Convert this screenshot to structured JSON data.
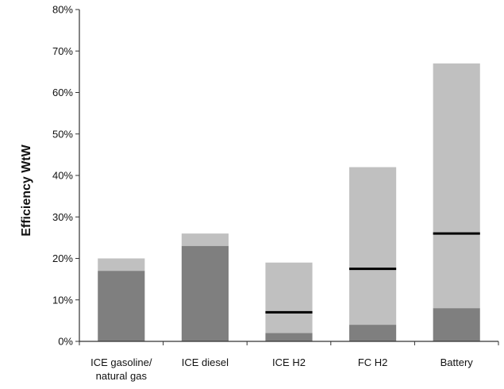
{
  "chart_data": {
    "type": "bar",
    "title": "",
    "xlabel": "",
    "ylabel": "Efficiency WtW",
    "ylim": [
      0,
      80
    ],
    "y_ticks": [
      "0%",
      "10%",
      "20%",
      "30%",
      "40%",
      "50%",
      "60%",
      "70%",
      "80%"
    ],
    "grid": false,
    "categories": [
      [
        "ICE gasoline/",
        "natural gas"
      ],
      [
        "ICE diesel"
      ],
      [
        "ICE H2"
      ],
      [
        "FC H2"
      ],
      [
        "Battery"
      ]
    ],
    "range_low": [
      17,
      23,
      2,
      4,
      8
    ],
    "range_high": [
      20,
      26,
      19,
      42,
      67
    ],
    "typical": [
      null,
      null,
      7,
      17.5,
      26
    ],
    "colors": {
      "low_segment": "#7f7f7f",
      "range_segment": "#c0c0c0",
      "typical_marker": "#000000",
      "axis": "#333333"
    }
  }
}
